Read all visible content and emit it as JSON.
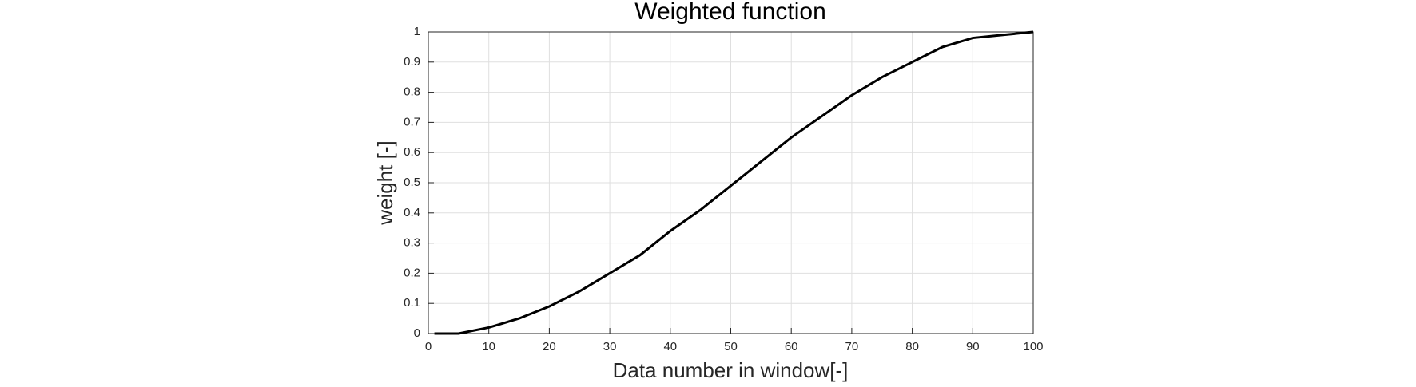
{
  "chart_data": {
    "type": "line",
    "title": "Weighted function",
    "x_label": "Data number in window[-]",
    "y_label": "weight [-]",
    "x": [
      1,
      5,
      10,
      15,
      20,
      25,
      30,
      35,
      40,
      45,
      50,
      55,
      60,
      65,
      70,
      75,
      80,
      85,
      90,
      95,
      100
    ],
    "series": [
      {
        "color": "#000000",
        "values": [
          0,
          0.0,
          0.02,
          0.05,
          0.09,
          0.14,
          0.2,
          0.26,
          0.34,
          0.41,
          0.49,
          0.57,
          0.65,
          0.72,
          0.79,
          0.85,
          0.9,
          0.95,
          0.98,
          0.99,
          1
        ]
      }
    ],
    "xlim": [
      0,
      100
    ],
    "xticks": [
      0,
      10,
      20,
      30,
      40,
      50,
      60,
      70,
      80,
      90,
      100
    ],
    "ylim": [
      0,
      1
    ],
    "yticks": [
      0,
      0.1,
      0.2,
      0.3,
      0.4,
      0.5,
      0.6,
      0.7,
      0.8,
      0.9,
      1
    ],
    "grid": true
  }
}
